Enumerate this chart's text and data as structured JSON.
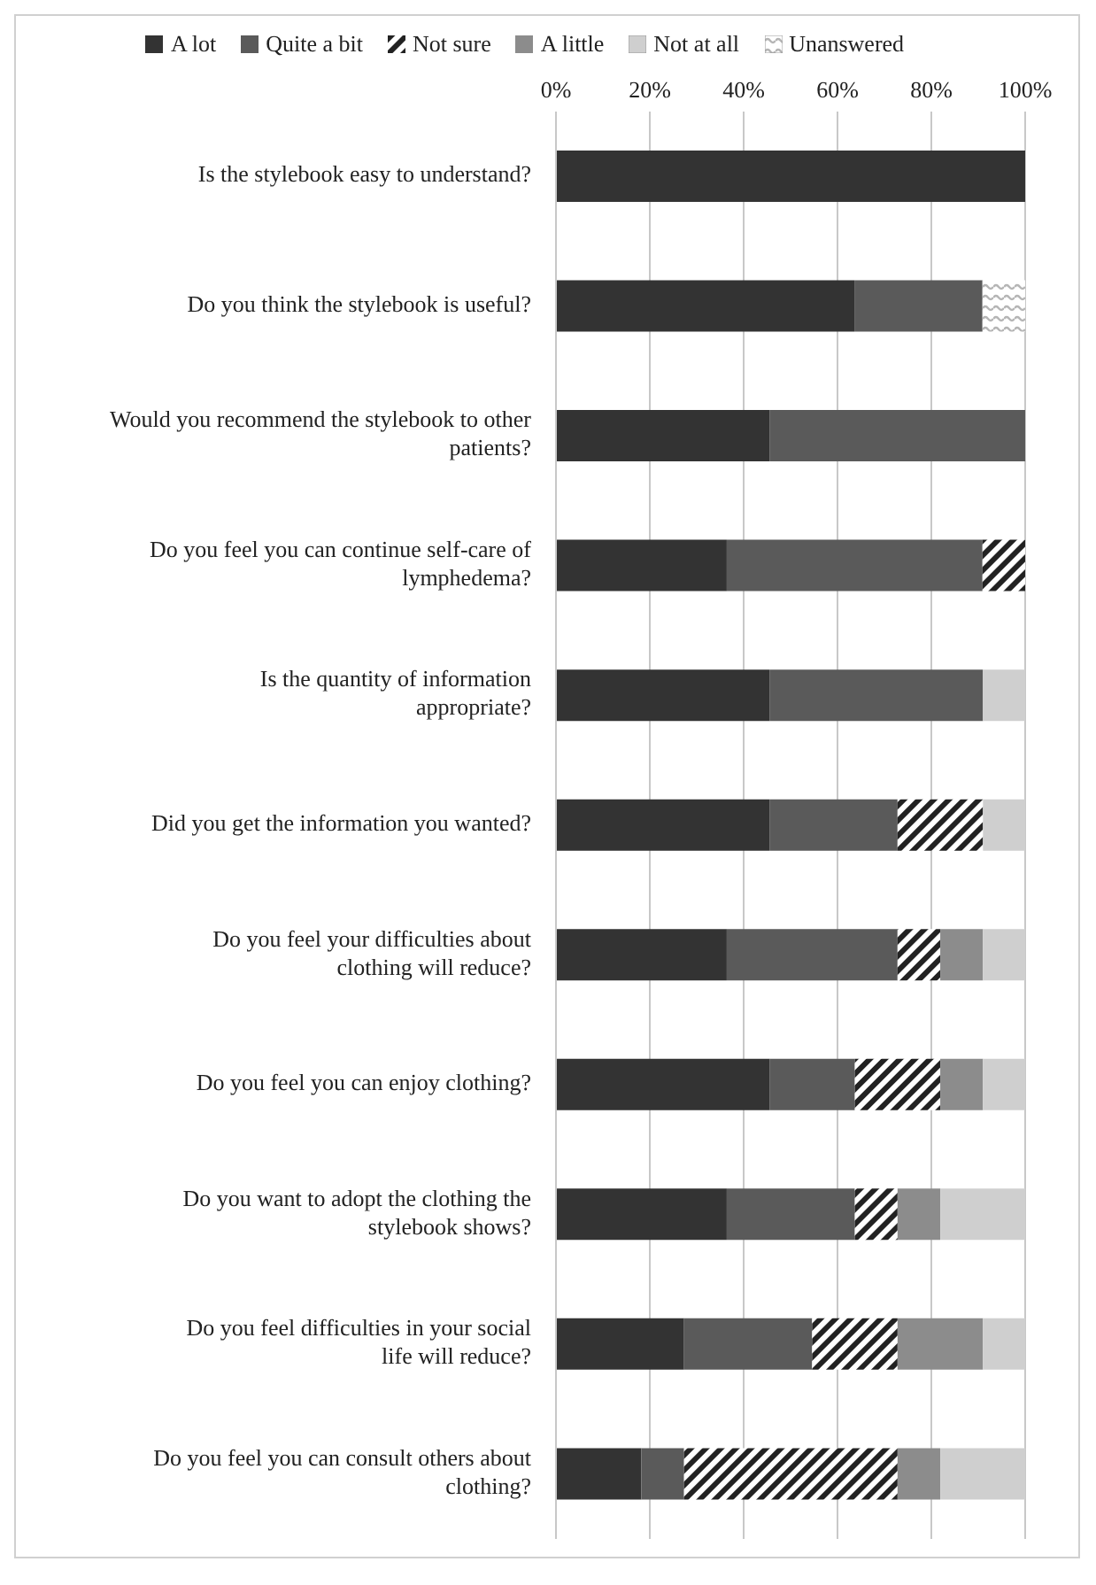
{
  "chart_data": {
    "type": "bar",
    "orientation": "horizontal",
    "stacked": true,
    "categories": [
      "Is the stylebook easy to understand?",
      "Do you think the stylebook is useful?",
      "Would you recommend the stylebook to other patients?",
      "Do you feel you can continue self-care of lymphedema?",
      "Is the quantity of information appropriate?",
      "Did you get the information you wanted?",
      "Do you feel your difficulties about clothing will reduce?",
      "Do you feel you can enjoy clothing?",
      "Do you want to adopt the clothing the stylebook shows?",
      "Do you feel difficulties in your social life will reduce?",
      "Do you feel you can consult others about clothing?"
    ],
    "series": [
      {
        "name": "A lot",
        "color": "#333333",
        "values": [
          100,
          63.6,
          45.5,
          36.4,
          45.5,
          45.5,
          36.4,
          45.5,
          36.4,
          27.3,
          18.2
        ]
      },
      {
        "name": "Quite a bit",
        "color": "#5a5a5a",
        "values": [
          null,
          27.3,
          54.5,
          54.5,
          45.5,
          27.3,
          36.4,
          18.2,
          27.3,
          27.3,
          9.1
        ]
      },
      {
        "name": "Not sure",
        "color": "#222222",
        "values": [
          null,
          null,
          null,
          9.1,
          null,
          18.2,
          9.1,
          18.2,
          9.1,
          18.2,
          45.5
        ]
      },
      {
        "name": "A little",
        "color": "#8c8c8c",
        "values": [
          null,
          null,
          null,
          null,
          null,
          null,
          9.1,
          9.1,
          9.1,
          18.2,
          9.1
        ]
      },
      {
        "name": "Not at all",
        "color": "#cfcfcf",
        "values": [
          null,
          null,
          null,
          null,
          9.1,
          9.1,
          9.1,
          9.1,
          18.2,
          9.1,
          18.2
        ]
      },
      {
        "name": "Unanswered",
        "color": "#b5b5b5",
        "values": [
          null,
          9.1,
          null,
          null,
          null,
          null,
          null,
          null,
          null,
          null,
          null
        ]
      }
    ],
    "xlim": [
      0,
      100
    ],
    "xticks": [
      {
        "value": 0,
        "label": "0%"
      },
      {
        "value": 20,
        "label": "20%"
      },
      {
        "value": 40,
        "label": "40%"
      },
      {
        "value": 60,
        "label": "60%"
      },
      {
        "value": 80,
        "label": "80%"
      },
      {
        "value": 100,
        "label": "100%"
      }
    ],
    "grid": "x",
    "legend": "top"
  }
}
